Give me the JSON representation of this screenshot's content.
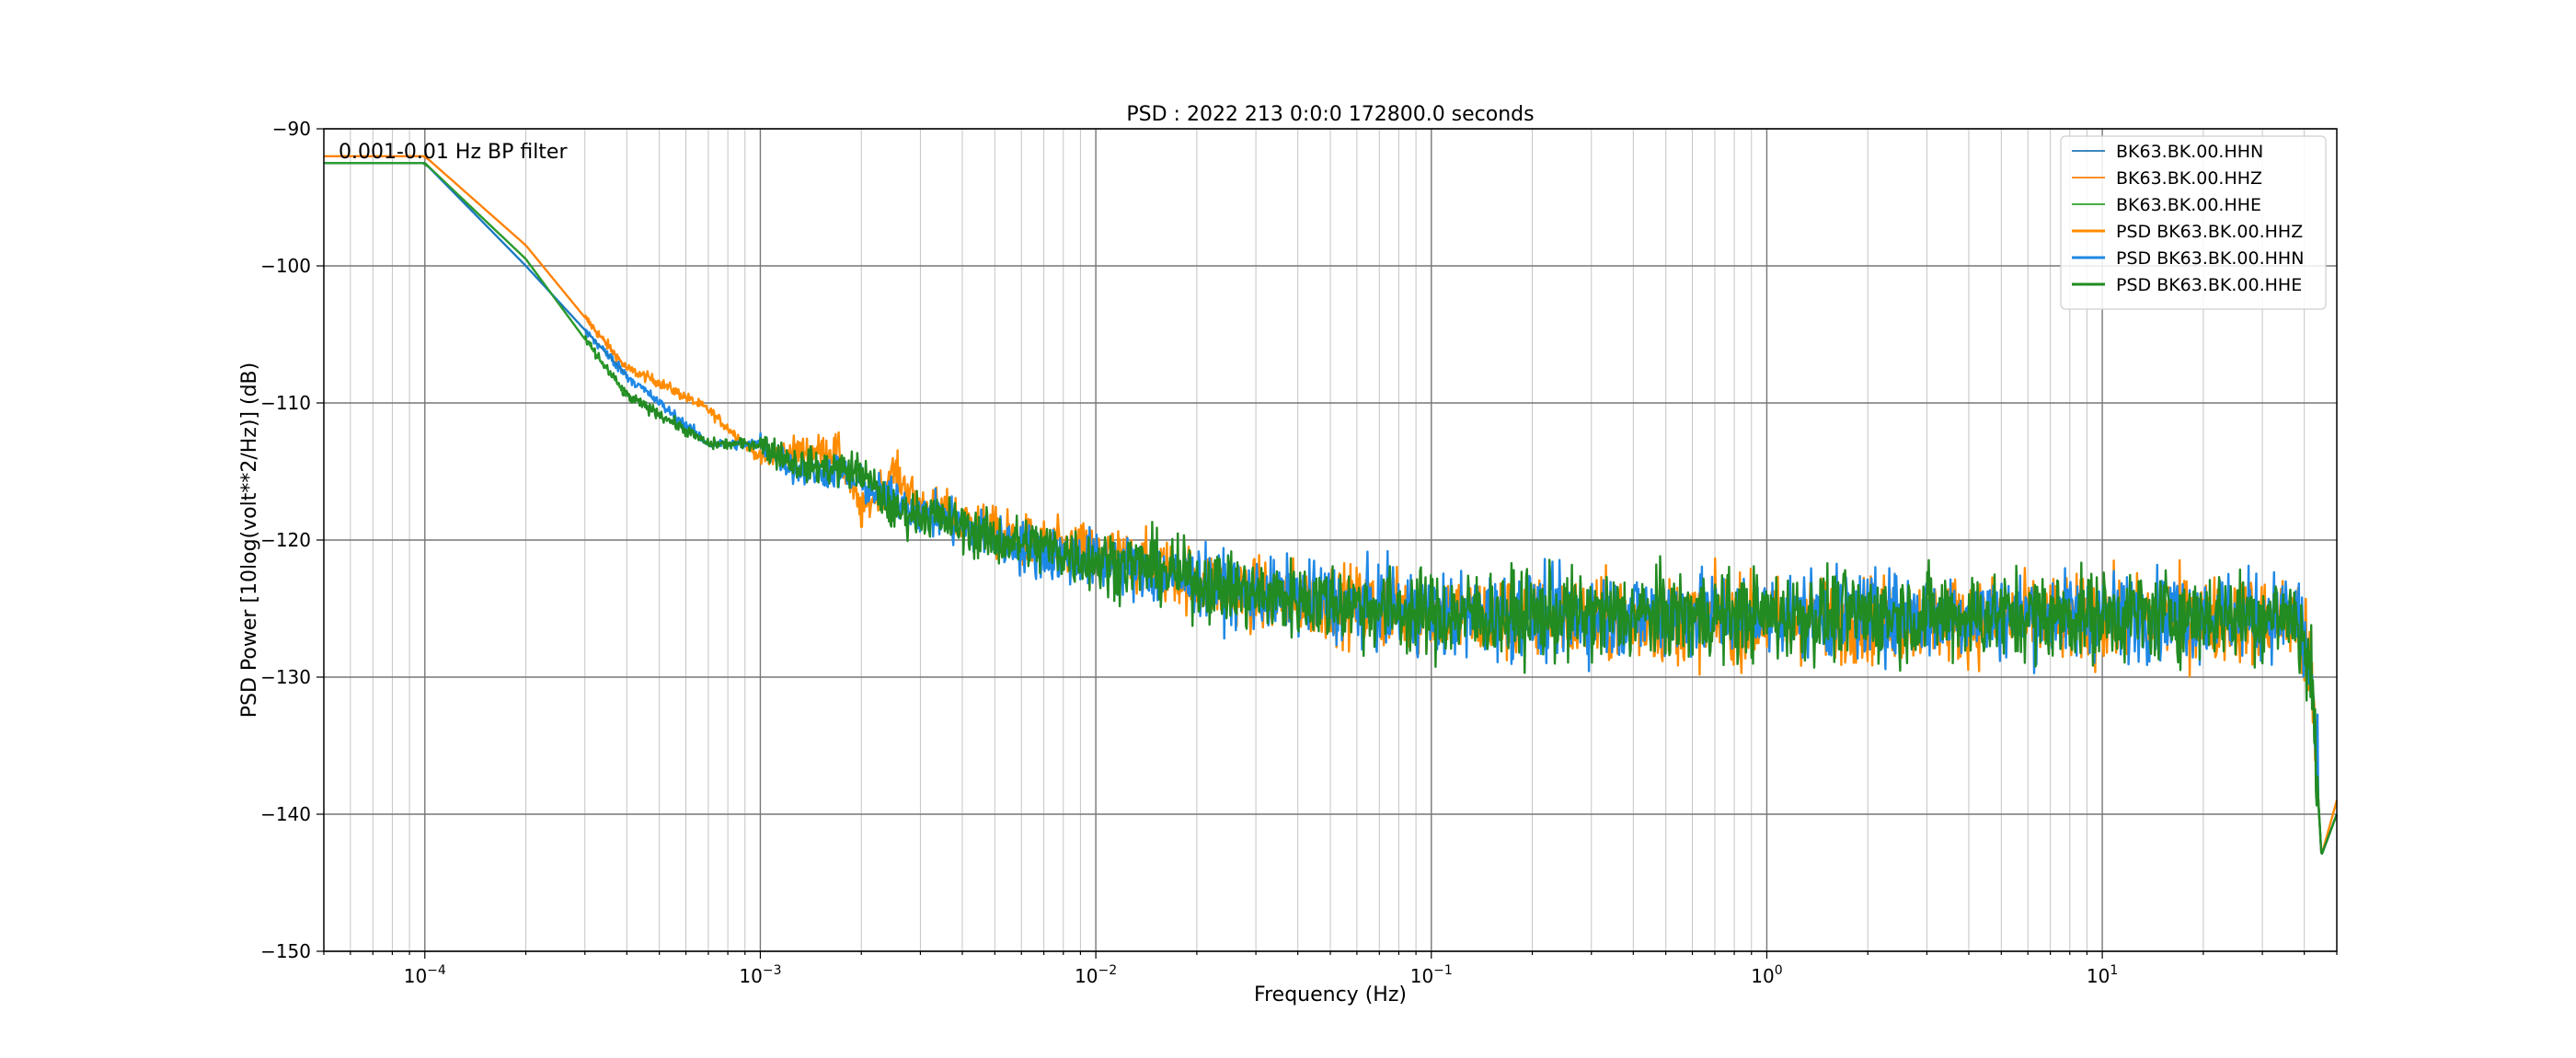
{
  "chart_data": {
    "type": "line",
    "title": "PSD : 2022 213 0:0:0 172800.0 seconds",
    "xlabel": "Frequency (Hz)",
    "ylabel": "PSD Power [10log(volt**2/Hz)] (dB)",
    "xscale": "log",
    "xlim": [
      5e-05,
      50
    ],
    "ylim": [
      -150,
      -90
    ],
    "grid": "on",
    "legend_placement": "top-right",
    "annotation": "0.001-0.01 Hz BP filter",
    "x_tick_labels": [
      {
        "value": 0.0001,
        "mantissa": "10",
        "exp": "−4"
      },
      {
        "value": 0.001,
        "mantissa": "10",
        "exp": "−3"
      },
      {
        "value": 0.01,
        "mantissa": "10",
        "exp": "−2"
      },
      {
        "value": 0.1,
        "mantissa": "10",
        "exp": "−1"
      },
      {
        "value": 1,
        "mantissa": "10",
        "exp": "0"
      },
      {
        "value": 10,
        "mantissa": "10",
        "exp": "1"
      }
    ],
    "y_ticks": [
      {
        "value": -90,
        "label": "−90"
      },
      {
        "value": -100,
        "label": "−100"
      },
      {
        "value": -110,
        "label": "−110"
      },
      {
        "value": -120,
        "label": "−120"
      },
      {
        "value": -130,
        "label": "−130"
      },
      {
        "value": -140,
        "label": "−140"
      },
      {
        "value": -150,
        "label": "−150"
      }
    ],
    "series": [
      {
        "name": "BK63.BK.00.HHN",
        "color": "#1f77b4",
        "style": "thin",
        "x": [
          5e-05,
          0.0001,
          0.0002,
          0.0004,
          0.0007,
          0.001,
          0.0015,
          0.002,
          0.003,
          0.005,
          0.01,
          0.02,
          0.05,
          0.1,
          0.5,
          1,
          5,
          10,
          40,
          50
        ],
        "y": [
          -92.5,
          -92.5,
          -100,
          -108,
          -113,
          -113,
          -115,
          -116,
          -118,
          -120,
          -121.5,
          -123,
          -124.5,
          -125.5,
          -125.5,
          -125.5,
          -125.5,
          -125.5,
          -125.5,
          -140
        ]
      },
      {
        "name": "BK63.BK.00.HHZ",
        "color": "#ff7f0e",
        "style": "thin",
        "x": [
          5e-05,
          0.0001,
          0.0002,
          0.0004,
          0.0007,
          0.001,
          0.0015,
          0.002,
          0.003,
          0.005,
          0.01,
          0.02,
          0.05,
          0.1,
          0.5,
          1,
          5,
          10,
          40,
          50
        ],
        "y": [
          -92,
          -92,
          -98.5,
          -107.5,
          -110.5,
          -114,
          -113.5,
          -116,
          -117.5,
          -119.5,
          -121,
          -123,
          -124.5,
          -125.5,
          -125.5,
          -125.5,
          -125.5,
          -125.5,
          -125.5,
          -139
        ]
      },
      {
        "name": "BK63.BK.00.HHE",
        "color": "#2ca02c",
        "style": "thin",
        "x": [
          5e-05,
          0.0001,
          0.0002,
          0.0004,
          0.0007,
          0.001,
          0.0015,
          0.002,
          0.003,
          0.005,
          0.01,
          0.02,
          0.05,
          0.1,
          0.5,
          1,
          5,
          10,
          40,
          50
        ],
        "y": [
          -92.5,
          -92.5,
          -99.5,
          -109.5,
          -113,
          -113,
          -115.5,
          -115,
          -118,
          -120,
          -121.5,
          -123,
          -124.5,
          -125.5,
          -125.5,
          -125.5,
          -125.5,
          -125.5,
          -125.5,
          -140
        ]
      },
      {
        "name": "PSD BK63.BK.00.HHZ",
        "color": "#ff8c00",
        "style": "thick",
        "x": [
          5e-05,
          0.0001,
          0.0002,
          0.0004,
          0.0005,
          0.0007,
          0.001,
          0.0013,
          0.0017,
          0.002,
          0.0025,
          0.003,
          0.004,
          0.005,
          0.007,
          0.01,
          0.015,
          0.02,
          0.03,
          0.05,
          0.1,
          0.2,
          0.5,
          1,
          2,
          5,
          10,
          20,
          38,
          42,
          45,
          50
        ],
        "y": [
          -92,
          -92,
          -98.5,
          -107.5,
          -108.5,
          -110.5,
          -114,
          -113.5,
          -113.5,
          -118,
          -115,
          -117.5,
          -118.5,
          -119.5,
          -120.5,
          -121,
          -122,
          -123,
          -124,
          -124.5,
          -125.5,
          -125.8,
          -125.8,
          -125.8,
          -125.8,
          -125.8,
          -125.8,
          -125.8,
          -125.8,
          -130,
          -143,
          -139
        ]
      },
      {
        "name": "PSD BK63.BK.00.HHN",
        "color": "#1e88e5",
        "style": "thick",
        "x": [
          5e-05,
          0.0001,
          0.0002,
          0.0004,
          0.0005,
          0.0007,
          0.001,
          0.0013,
          0.0017,
          0.002,
          0.0025,
          0.003,
          0.004,
          0.005,
          0.007,
          0.01,
          0.015,
          0.02,
          0.03,
          0.05,
          0.1,
          0.2,
          0.5,
          1,
          2,
          5,
          10,
          20,
          38,
          42,
          45,
          50
        ],
        "y": [
          -92.5,
          -92.5,
          -100,
          -108,
          -110,
          -113,
          -113,
          -115,
          -115,
          -116,
          -117,
          -118,
          -119,
          -120,
          -121,
          -121.5,
          -122.5,
          -123,
          -124,
          -124.5,
          -125.5,
          -125.5,
          -125.5,
          -125.5,
          -125.5,
          -125.5,
          -125.5,
          -125.5,
          -125.5,
          -130,
          -143,
          -140
        ]
      },
      {
        "name": "PSD BK63.BK.00.HHE",
        "color": "#228b22",
        "style": "thick",
        "x": [
          5e-05,
          0.0001,
          0.0002,
          0.0004,
          0.0005,
          0.0007,
          0.001,
          0.0013,
          0.0017,
          0.002,
          0.0025,
          0.003,
          0.004,
          0.005,
          0.007,
          0.01,
          0.015,
          0.02,
          0.03,
          0.05,
          0.1,
          0.2,
          0.5,
          1,
          2,
          5,
          10,
          20,
          38,
          42,
          45,
          50
        ],
        "y": [
          -92.5,
          -92.5,
          -99.5,
          -109.5,
          -110.8,
          -113,
          -113,
          -114.5,
          -114.8,
          -115,
          -118,
          -118,
          -119,
          -120,
          -120.5,
          -121.5,
          -122,
          -123,
          -124,
          -124.5,
          -125.5,
          -125.5,
          -125.5,
          -125.5,
          -125.5,
          -125.5,
          -125.5,
          -125.5,
          -125.5,
          -130,
          -143,
          -140
        ]
      }
    ]
  }
}
